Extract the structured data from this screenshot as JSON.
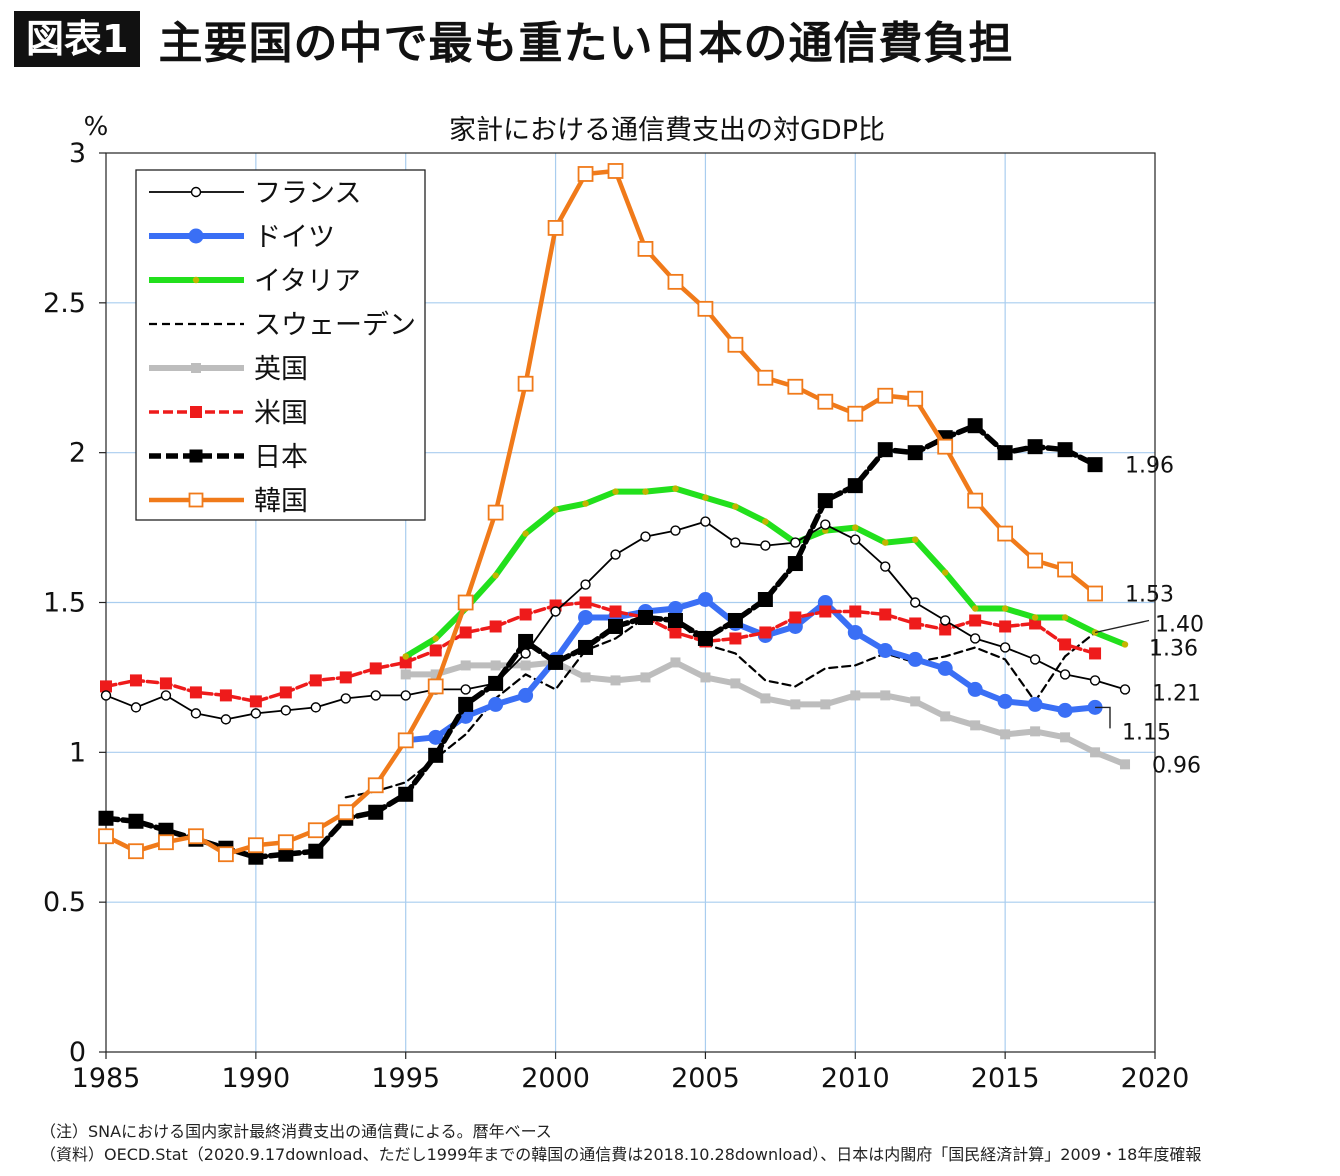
{
  "figure": {
    "badge": "図表1",
    "title": "主要国の中で最も重たい日本の通信費負担"
  },
  "chart_data": {
    "type": "line",
    "title": "家計における通信費支出の対GDP比",
    "ylabel": "%",
    "xlim": [
      1985,
      2020
    ],
    "ylim": [
      0,
      3
    ],
    "xticks": [
      1985,
      1990,
      1995,
      2000,
      2005,
      2010,
      2015,
      2020
    ],
    "yticks": [
      0,
      0.5,
      1,
      1.5,
      2,
      2.5,
      3
    ],
    "ytick_labels": [
      "0",
      "0.5",
      "1",
      "1.5",
      "2",
      "2.5",
      "3"
    ],
    "grid": true,
    "legend_position": "top-left",
    "series": [
      {
        "name": "フランス",
        "color": "#000000",
        "style": "thin-open-circle",
        "x": [
          1985,
          1986,
          1987,
          1988,
          1989,
          1990,
          1991,
          1992,
          1993,
          1994,
          1995,
          1996,
          1997,
          1998,
          1999,
          2000,
          2001,
          2002,
          2003,
          2004,
          2005,
          2006,
          2007,
          2008,
          2009,
          2010,
          2011,
          2012,
          2013,
          2014,
          2015,
          2016,
          2017,
          2018,
          2019
        ],
        "y": [
          1.19,
          1.15,
          1.19,
          1.13,
          1.11,
          1.13,
          1.14,
          1.15,
          1.18,
          1.19,
          1.19,
          1.21,
          1.21,
          1.23,
          1.33,
          1.47,
          1.56,
          1.66,
          1.72,
          1.74,
          1.77,
          1.7,
          1.69,
          1.7,
          1.76,
          1.71,
          1.62,
          1.5,
          1.44,
          1.38,
          1.35,
          1.31,
          1.26,
          1.24,
          1.21
        ]
      },
      {
        "name": "ドイツ",
        "color": "#3a6ff5",
        "style": "thick-filled-circle",
        "x": [
          1995,
          1996,
          1997,
          1998,
          1999,
          2000,
          2001,
          2002,
          2003,
          2004,
          2005,
          2006,
          2007,
          2008,
          2009,
          2010,
          2011,
          2012,
          2013,
          2014,
          2015,
          2016,
          2017,
          2018
        ],
        "y": [
          1.04,
          1.05,
          1.12,
          1.16,
          1.19,
          1.31,
          1.45,
          1.45,
          1.47,
          1.48,
          1.51,
          1.43,
          1.39,
          1.42,
          1.5,
          1.4,
          1.34,
          1.31,
          1.28,
          1.21,
          1.17,
          1.16,
          1.14,
          1.15
        ]
      },
      {
        "name": "イタリア",
        "color": "#22e01c",
        "style": "thick-small-dot",
        "x": [
          1995,
          1996,
          1997,
          1998,
          1999,
          2000,
          2001,
          2002,
          2003,
          2004,
          2005,
          2006,
          2007,
          2008,
          2009,
          2010,
          2011,
          2012,
          2013,
          2014,
          2015,
          2016,
          2017,
          2018,
          2019
        ],
        "y": [
          1.32,
          1.38,
          1.48,
          1.59,
          1.73,
          1.81,
          1.83,
          1.87,
          1.87,
          1.88,
          1.85,
          1.82,
          1.77,
          1.7,
          1.74,
          1.75,
          1.7,
          1.71,
          1.6,
          1.48,
          1.48,
          1.45,
          1.45,
          1.4,
          1.36
        ]
      },
      {
        "name": "スウェーデン",
        "color": "#000000",
        "style": "dashed",
        "x": [
          1993,
          1994,
          1995,
          1996,
          1997,
          1998,
          1999,
          2000,
          2001,
          2002,
          2003,
          2004,
          2005,
          2006,
          2007,
          2008,
          2009,
          2010,
          2011,
          2012,
          2013,
          2014,
          2015,
          2016,
          2017,
          2018
        ],
        "y": [
          0.85,
          0.87,
          0.9,
          0.98,
          1.06,
          1.18,
          1.26,
          1.21,
          1.34,
          1.38,
          1.45,
          1.44,
          1.36,
          1.33,
          1.24,
          1.22,
          1.28,
          1.29,
          1.33,
          1.3,
          1.32,
          1.35,
          1.31,
          1.17,
          1.32,
          1.4
        ]
      },
      {
        "name": "英国",
        "color": "#bdbdbd",
        "style": "thick-square",
        "x": [
          1995,
          1996,
          1997,
          1998,
          1999,
          2000,
          2001,
          2002,
          2003,
          2004,
          2005,
          2006,
          2007,
          2008,
          2009,
          2010,
          2011,
          2012,
          2013,
          2014,
          2015,
          2016,
          2017,
          2018,
          2019
        ],
        "y": [
          1.26,
          1.26,
          1.29,
          1.29,
          1.29,
          1.3,
          1.25,
          1.24,
          1.25,
          1.3,
          1.25,
          1.23,
          1.18,
          1.16,
          1.16,
          1.19,
          1.19,
          1.17,
          1.12,
          1.09,
          1.06,
          1.07,
          1.05,
          1.0,
          0.96
        ]
      },
      {
        "name": "米国",
        "color": "#ee1b1b",
        "style": "medium-square",
        "x": [
          1985,
          1986,
          1987,
          1988,
          1989,
          1990,
          1991,
          1992,
          1993,
          1994,
          1995,
          1996,
          1997,
          1998,
          1999,
          2000,
          2001,
          2002,
          2003,
          2004,
          2005,
          2006,
          2007,
          2008,
          2009,
          2010,
          2011,
          2012,
          2013,
          2014,
          2015,
          2016,
          2017,
          2018
        ],
        "y": [
          1.22,
          1.24,
          1.23,
          1.2,
          1.19,
          1.17,
          1.2,
          1.24,
          1.25,
          1.28,
          1.3,
          1.34,
          1.4,
          1.42,
          1.46,
          1.49,
          1.5,
          1.47,
          1.45,
          1.4,
          1.37,
          1.38,
          1.4,
          1.45,
          1.47,
          1.47,
          1.46,
          1.43,
          1.41,
          1.44,
          1.42,
          1.43,
          1.36,
          1.33
        ]
      },
      {
        "name": "日本",
        "color": "#000000",
        "style": "thick-dashed-square",
        "x": [
          1985,
          1986,
          1987,
          1988,
          1989,
          1990,
          1991,
          1992,
          1993,
          1994,
          1995,
          1996,
          1997,
          1998,
          1999,
          2000,
          2001,
          2002,
          2003,
          2004,
          2005,
          2006,
          2007,
          2008,
          2009,
          2010,
          2011,
          2012,
          2013,
          2014,
          2015,
          2016,
          2017,
          2018
        ],
        "y": [
          0.78,
          0.77,
          0.74,
          0.71,
          0.68,
          0.65,
          0.66,
          0.67,
          0.78,
          0.8,
          0.86,
          0.99,
          1.16,
          1.23,
          1.37,
          1.3,
          1.35,
          1.42,
          1.45,
          1.44,
          1.38,
          1.44,
          1.51,
          1.63,
          1.84,
          1.89,
          2.01,
          2.0,
          2.05,
          2.09,
          2.0,
          2.02,
          2.01,
          1.96
        ]
      },
      {
        "name": "韓国",
        "color": "#f07a1a",
        "style": "thick-open-square",
        "x": [
          1985,
          1986,
          1987,
          1988,
          1989,
          1990,
          1991,
          1992,
          1993,
          1994,
          1995,
          1996,
          1997,
          1998,
          1999,
          2000,
          2001,
          2002,
          2003,
          2004,
          2005,
          2006,
          2007,
          2008,
          2009,
          2010,
          2011,
          2012,
          2013,
          2014,
          2015,
          2016,
          2017,
          2018
        ],
        "y": [
          0.72,
          0.67,
          0.7,
          0.72,
          0.66,
          0.69,
          0.7,
          0.74,
          0.8,
          0.89,
          1.04,
          1.22,
          1.5,
          1.8,
          2.23,
          2.75,
          2.93,
          2.94,
          2.68,
          2.57,
          2.48,
          2.36,
          2.25,
          2.22,
          2.17,
          2.13,
          2.19,
          2.18,
          2.02,
          1.84,
          1.73,
          1.64,
          1.61,
          1.53
        ]
      }
    ],
    "end_labels": [
      {
        "text": "1.96",
        "x": 2019.0,
        "y": 1.96
      },
      {
        "text": "1.53",
        "x": 2019.0,
        "y": 1.53
      },
      {
        "text": "1.40",
        "x": 2020.0,
        "y": 1.43
      },
      {
        "text": "1.36",
        "x": 2019.8,
        "y": 1.35
      },
      {
        "text": "1.21",
        "x": 2019.9,
        "y": 1.2
      },
      {
        "text": "1.15",
        "x": 2018.9,
        "y": 1.07
      },
      {
        "text": "0.96",
        "x": 2019.9,
        "y": 0.96
      }
    ],
    "callouts": [
      {
        "label": "1.40",
        "from": [
          2018.0,
          1.4
        ],
        "to": [
          2019.8,
          1.44
        ]
      },
      {
        "label": "1.15",
        "from": [
          2018.0,
          1.15
        ],
        "to": [
          2018.5,
          1.15
        ],
        "to2": [
          2018.5,
          1.08
        ]
      }
    ]
  },
  "notes": [
    "（注）SNAにおける国内家計最終消費支出の通信費による。暦年ベース",
    "（資料）OECD.Stat（2020.9.17download、ただし1999年までの韓国の通信費は2018.10.28download）、日本は内閣府「国民経済計算」2009・18年度確報"
  ]
}
